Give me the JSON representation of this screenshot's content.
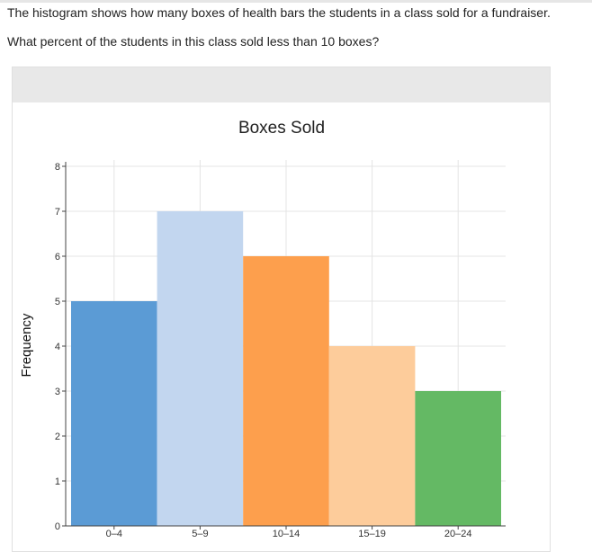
{
  "question": {
    "line1": "The histogram shows how many boxes of health bars the students in a class sold for a fundraiser.",
    "line2": "What percent of the students in this class sold less than 10 boxes?"
  },
  "chart_data": {
    "type": "bar",
    "title": "Boxes Sold",
    "xlabel": "",
    "ylabel": "Frequency",
    "categories": [
      "0–4",
      "5–9",
      "10–14",
      "15–19",
      "20–24"
    ],
    "values": [
      5,
      7,
      6,
      4,
      3
    ],
    "colors": [
      "#5b9bd5",
      "#c2d6ef",
      "#fd9f4d",
      "#fdcc9b",
      "#64b964"
    ],
    "ylim": [
      0,
      8
    ],
    "yticks": [
      0,
      1,
      2,
      3,
      4,
      5,
      6,
      7,
      8
    ],
    "grid": true,
    "legend": "none"
  }
}
